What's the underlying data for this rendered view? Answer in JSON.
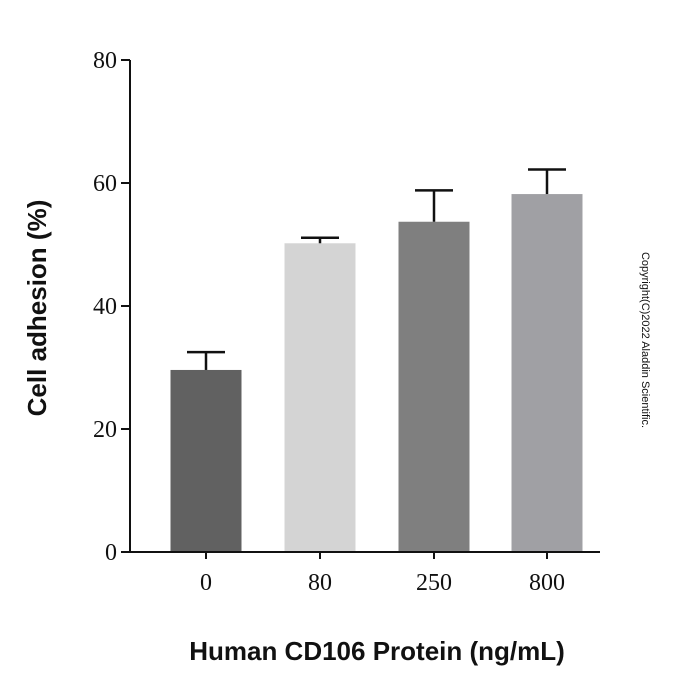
{
  "chart_data": {
    "type": "bar",
    "title": "",
    "xlabel": "Human CD106 Protein (ng/mL)",
    "ylabel": "Cell adhesion (%)",
    "categories": [
      "0",
      "80",
      "250",
      "800"
    ],
    "values": [
      29.6,
      50.2,
      53.7,
      58.2
    ],
    "error_bars": [
      2.9,
      0.9,
      5.1,
      4.0
    ],
    "colors": [
      "#616161",
      "#d4d4d4",
      "#7f7f7f",
      "#a0a0a4"
    ],
    "ylim": [
      0,
      80
    ],
    "yticks": [
      0,
      20,
      40,
      60,
      80
    ],
    "grid": false
  },
  "watermark": "Copyright(C)2022 Aladdin Scientific."
}
